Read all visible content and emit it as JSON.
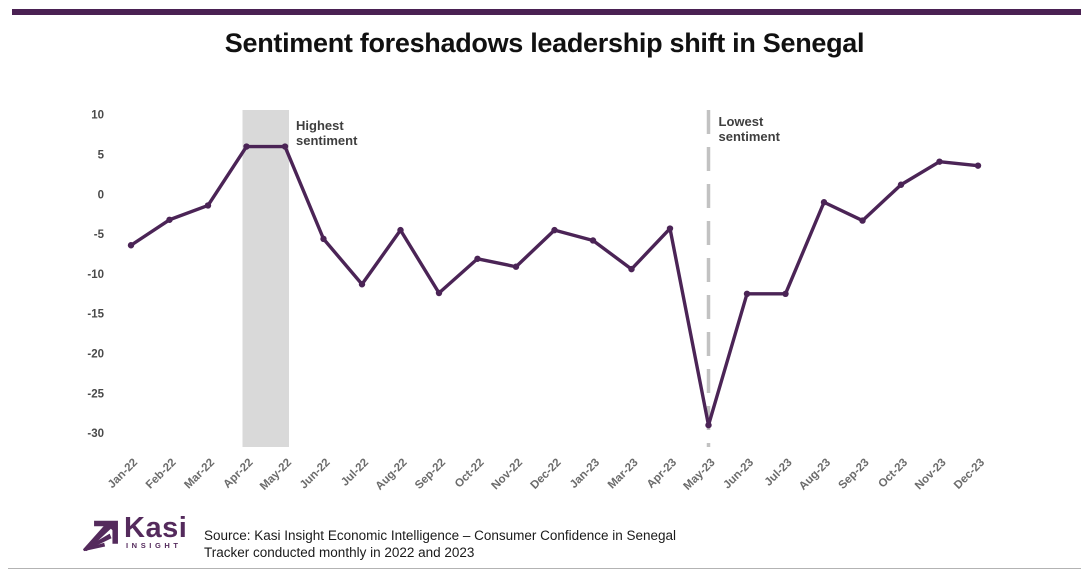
{
  "header": {
    "title": "Sentiment foreshadows leadership shift in Senegal"
  },
  "chart_data": {
    "type": "line",
    "title": "Sentiment foreshadows leadership shift in Senegal",
    "categories": [
      "Jan-22",
      "Feb-22",
      "Mar-22",
      "Apr-22",
      "May-22",
      "Jun-22",
      "Jul-22",
      "Aug-22",
      "Sep-22",
      "Oct-22",
      "Nov-22",
      "Dec-22",
      "Jan-23",
      "Mar-23",
      "Apr-23",
      "May-23",
      "Jun-23",
      "Jul-23",
      "Aug-23",
      "Sep-23",
      "Oct-23",
      "Nov-23",
      "Dec-23"
    ],
    "values": [
      -6.4,
      -3.2,
      -1.4,
      6,
      6,
      -5.6,
      -11.3,
      -4.5,
      -12.4,
      -8.1,
      -9.1,
      -4.5,
      -5.8,
      -9.4,
      -4.3,
      -29,
      -12.5,
      -12.5,
      -1,
      -3.3,
      1.2,
      4.1,
      3.6
    ],
    "xlabel": "",
    "ylabel": "",
    "ylim": [
      -30,
      10
    ],
    "yticks": [
      10,
      5,
      0,
      -5,
      -10,
      -15,
      -20,
      -25,
      -30
    ],
    "grid": false,
    "legend": "none",
    "annotations": {
      "highest_band": {
        "label_lines": [
          "Highest",
          "sentiment"
        ],
        "from": "Apr-22",
        "to": "May-22"
      },
      "lowest_line": {
        "label_lines": [
          "Lowest",
          "sentiment"
        ],
        "at": "May-23"
      }
    }
  },
  "footer": {
    "logo": {
      "brand": "Kasi",
      "sub": "INSIGHT"
    },
    "source_line1": "Source: Kasi Insight Economic Intelligence – Consumer Confidence in Senegal",
    "source_line2": "Tracker conducted monthly in 2022 and 2023"
  },
  "colors": {
    "accent_purple": "#4a2153",
    "line_purple": "#4b2456",
    "logo_purple": "#542a5c",
    "band_gray": "#d9d9d9",
    "dash_gray": "#c2c2c2",
    "anno_gray": "#3f3f3f",
    "ytick_gray": "#4a4a4a",
    "xtick_gray": "#6b6b6b",
    "title_black": "#111111",
    "source_black": "#1a1a1a",
    "divider_gray": "#b3b3b3"
  }
}
